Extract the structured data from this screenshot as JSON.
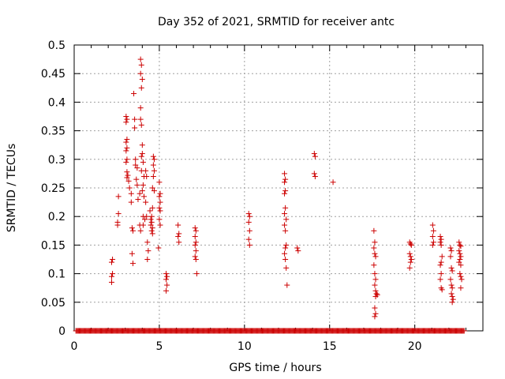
{
  "chart_data": {
    "type": "scatter",
    "title": "Day 352 of 2021, SRMTID for receiver antc",
    "xlabel": "GPS time / hours",
    "ylabel": "SRMTID / TECUs",
    "xlim": [
      0,
      24
    ],
    "ylim": [
      0,
      0.5
    ],
    "xticks": [
      0,
      5,
      10,
      15,
      20
    ],
    "yticks": [
      0,
      0.05,
      0.1,
      0.15,
      0.2,
      0.25,
      0.3,
      0.35,
      0.4,
      0.45,
      0.5
    ],
    "grid": true,
    "marker_color": "#cc0000",
    "marker": "plus",
    "series": [
      {
        "points": [
          [
            2.2,
            0.085
          ],
          [
            2.2,
            0.095
          ],
          [
            2.25,
            0.1
          ],
          [
            2.2,
            0.12
          ],
          [
            2.25,
            0.125
          ],
          [
            2.55,
            0.19
          ],
          [
            2.55,
            0.185
          ],
          [
            2.6,
            0.205
          ],
          [
            2.6,
            0.235
          ],
          [
            3.05,
            0.375
          ],
          [
            3.1,
            0.37
          ],
          [
            3.05,
            0.365
          ],
          [
            3.1,
            0.335
          ],
          [
            3.05,
            0.33
          ],
          [
            3.1,
            0.32
          ],
          [
            3.05,
            0.315
          ],
          [
            3.1,
            0.3
          ],
          [
            3.05,
            0.295
          ],
          [
            3.1,
            0.278
          ],
          [
            3.15,
            0.272
          ],
          [
            3.1,
            0.268
          ],
          [
            3.2,
            0.262
          ],
          [
            3.25,
            0.25
          ],
          [
            3.35,
            0.24
          ],
          [
            3.35,
            0.225
          ],
          [
            3.4,
            0.18
          ],
          [
            3.45,
            0.175
          ],
          [
            3.4,
            0.135
          ],
          [
            3.45,
            0.118
          ],
          [
            3.5,
            0.415
          ],
          [
            3.55,
            0.37
          ],
          [
            3.55,
            0.355
          ],
          [
            3.6,
            0.3
          ],
          [
            3.6,
            0.29
          ],
          [
            3.7,
            0.285
          ],
          [
            3.65,
            0.265
          ],
          [
            3.7,
            0.255
          ],
          [
            3.75,
            0.23
          ],
          [
            3.85,
            0.24
          ],
          [
            3.9,
            0.475
          ],
          [
            3.95,
            0.465
          ],
          [
            3.9,
            0.45
          ],
          [
            4.0,
            0.44
          ],
          [
            3.95,
            0.425
          ],
          [
            3.9,
            0.39
          ],
          [
            3.9,
            0.37
          ],
          [
            3.95,
            0.36
          ],
          [
            4.0,
            0.325
          ],
          [
            4.0,
            0.31
          ],
          [
            3.95,
            0.305
          ],
          [
            4.05,
            0.295
          ],
          [
            3.95,
            0.28
          ],
          [
            4.1,
            0.27
          ],
          [
            4.05,
            0.255
          ],
          [
            4.0,
            0.245
          ],
          [
            4.1,
            0.235
          ],
          [
            3.85,
            0.185
          ],
          [
            3.9,
            0.175
          ],
          [
            4.05,
            0.2
          ],
          [
            4.05,
            0.185
          ],
          [
            4.15,
            0.195
          ],
          [
            4.2,
            0.28
          ],
          [
            4.25,
            0.27
          ],
          [
            4.2,
            0.225
          ],
          [
            4.25,
            0.2
          ],
          [
            4.3,
            0.155
          ],
          [
            4.35,
            0.14
          ],
          [
            4.3,
            0.125
          ],
          [
            4.45,
            0.21
          ],
          [
            4.5,
            0.195
          ],
          [
            4.55,
            0.19
          ],
          [
            4.5,
            0.185
          ],
          [
            4.6,
            0.18
          ],
          [
            4.55,
            0.175
          ],
          [
            4.6,
            0.17
          ],
          [
            4.55,
            0.2
          ],
          [
            4.6,
            0.215
          ],
          [
            4.65,
            0.305
          ],
          [
            4.7,
            0.3
          ],
          [
            4.65,
            0.29
          ],
          [
            4.7,
            0.28
          ],
          [
            4.65,
            0.27
          ],
          [
            4.6,
            0.25
          ],
          [
            4.7,
            0.245
          ],
          [
            5.0,
            0.26
          ],
          [
            5.05,
            0.24
          ],
          [
            5.0,
            0.235
          ],
          [
            5.05,
            0.225
          ],
          [
            5.0,
            0.215
          ],
          [
            5.05,
            0.21
          ],
          [
            5.0,
            0.195
          ],
          [
            5.05,
            0.185
          ],
          [
            4.95,
            0.145
          ],
          [
            5.4,
            0.1
          ],
          [
            5.45,
            0.095
          ],
          [
            5.4,
            0.09
          ],
          [
            5.45,
            0.08
          ],
          [
            5.4,
            0.07
          ],
          [
            6.1,
            0.185
          ],
          [
            6.15,
            0.17
          ],
          [
            6.1,
            0.165
          ],
          [
            6.15,
            0.155
          ],
          [
            7.1,
            0.18
          ],
          [
            7.15,
            0.175
          ],
          [
            7.1,
            0.165
          ],
          [
            7.15,
            0.155
          ],
          [
            7.1,
            0.15
          ],
          [
            7.15,
            0.14
          ],
          [
            7.1,
            0.13
          ],
          [
            7.15,
            0.125
          ],
          [
            7.2,
            0.1
          ],
          [
            10.25,
            0.205
          ],
          [
            10.3,
            0.2
          ],
          [
            10.25,
            0.19
          ],
          [
            10.3,
            0.175
          ],
          [
            10.25,
            0.16
          ],
          [
            10.3,
            0.15
          ],
          [
            12.35,
            0.275
          ],
          [
            12.4,
            0.265
          ],
          [
            12.35,
            0.26
          ],
          [
            12.4,
            0.245
          ],
          [
            12.35,
            0.24
          ],
          [
            12.4,
            0.215
          ],
          [
            12.35,
            0.205
          ],
          [
            12.45,
            0.195
          ],
          [
            12.35,
            0.185
          ],
          [
            12.4,
            0.175
          ],
          [
            12.45,
            0.15
          ],
          [
            12.4,
            0.145
          ],
          [
            12.35,
            0.135
          ],
          [
            12.4,
            0.125
          ],
          [
            12.45,
            0.11
          ],
          [
            12.5,
            0.08
          ],
          [
            13.1,
            0.145
          ],
          [
            13.15,
            0.14
          ],
          [
            14.1,
            0.31
          ],
          [
            14.15,
            0.305
          ],
          [
            14.1,
            0.275
          ],
          [
            14.15,
            0.27
          ],
          [
            15.2,
            0.26
          ],
          [
            17.6,
            0.175
          ],
          [
            17.65,
            0.155
          ],
          [
            17.6,
            0.145
          ],
          [
            17.65,
            0.135
          ],
          [
            17.7,
            0.13
          ],
          [
            17.6,
            0.115
          ],
          [
            17.65,
            0.1
          ],
          [
            17.7,
            0.09
          ],
          [
            17.65,
            0.08
          ],
          [
            17.7,
            0.07
          ],
          [
            17.75,
            0.065
          ],
          [
            17.7,
            0.06
          ],
          [
            17.8,
            0.063
          ],
          [
            17.65,
            0.04
          ],
          [
            17.7,
            0.03
          ],
          [
            17.65,
            0.025
          ],
          [
            19.7,
            0.155
          ],
          [
            19.75,
            0.152
          ],
          [
            19.8,
            0.15
          ],
          [
            19.7,
            0.135
          ],
          [
            19.75,
            0.13
          ],
          [
            19.8,
            0.125
          ],
          [
            19.75,
            0.12
          ],
          [
            19.7,
            0.11
          ],
          [
            21.05,
            0.185
          ],
          [
            21.1,
            0.175
          ],
          [
            21.05,
            0.165
          ],
          [
            21.1,
            0.155
          ],
          [
            21.05,
            0.15
          ],
          [
            21.5,
            0.165
          ],
          [
            21.55,
            0.16
          ],
          [
            21.5,
            0.155
          ],
          [
            21.55,
            0.15
          ],
          [
            21.6,
            0.13
          ],
          [
            21.55,
            0.12
          ],
          [
            21.5,
            0.115
          ],
          [
            21.55,
            0.1
          ],
          [
            21.5,
            0.09
          ],
          [
            21.55,
            0.075
          ],
          [
            21.6,
            0.072
          ],
          [
            22.1,
            0.145
          ],
          [
            22.15,
            0.14
          ],
          [
            22.1,
            0.13
          ],
          [
            22.15,
            0.11
          ],
          [
            22.2,
            0.105
          ],
          [
            22.1,
            0.09
          ],
          [
            22.15,
            0.08
          ],
          [
            22.2,
            0.075
          ],
          [
            22.15,
            0.065
          ],
          [
            22.2,
            0.06
          ],
          [
            22.25,
            0.055
          ],
          [
            22.2,
            0.05
          ],
          [
            22.6,
            0.155
          ],
          [
            22.65,
            0.15
          ],
          [
            22.7,
            0.148
          ],
          [
            22.6,
            0.14
          ],
          [
            22.65,
            0.135
          ],
          [
            22.7,
            0.13
          ],
          [
            22.65,
            0.125
          ],
          [
            22.6,
            0.12
          ],
          [
            22.7,
            0.115
          ],
          [
            22.65,
            0.1
          ],
          [
            22.7,
            0.095
          ],
          [
            22.75,
            0.09
          ],
          [
            22.7,
            0.075
          ]
        ]
      }
    ],
    "zero_ranges": [
      [
        0.1,
        22.9
      ]
    ]
  }
}
